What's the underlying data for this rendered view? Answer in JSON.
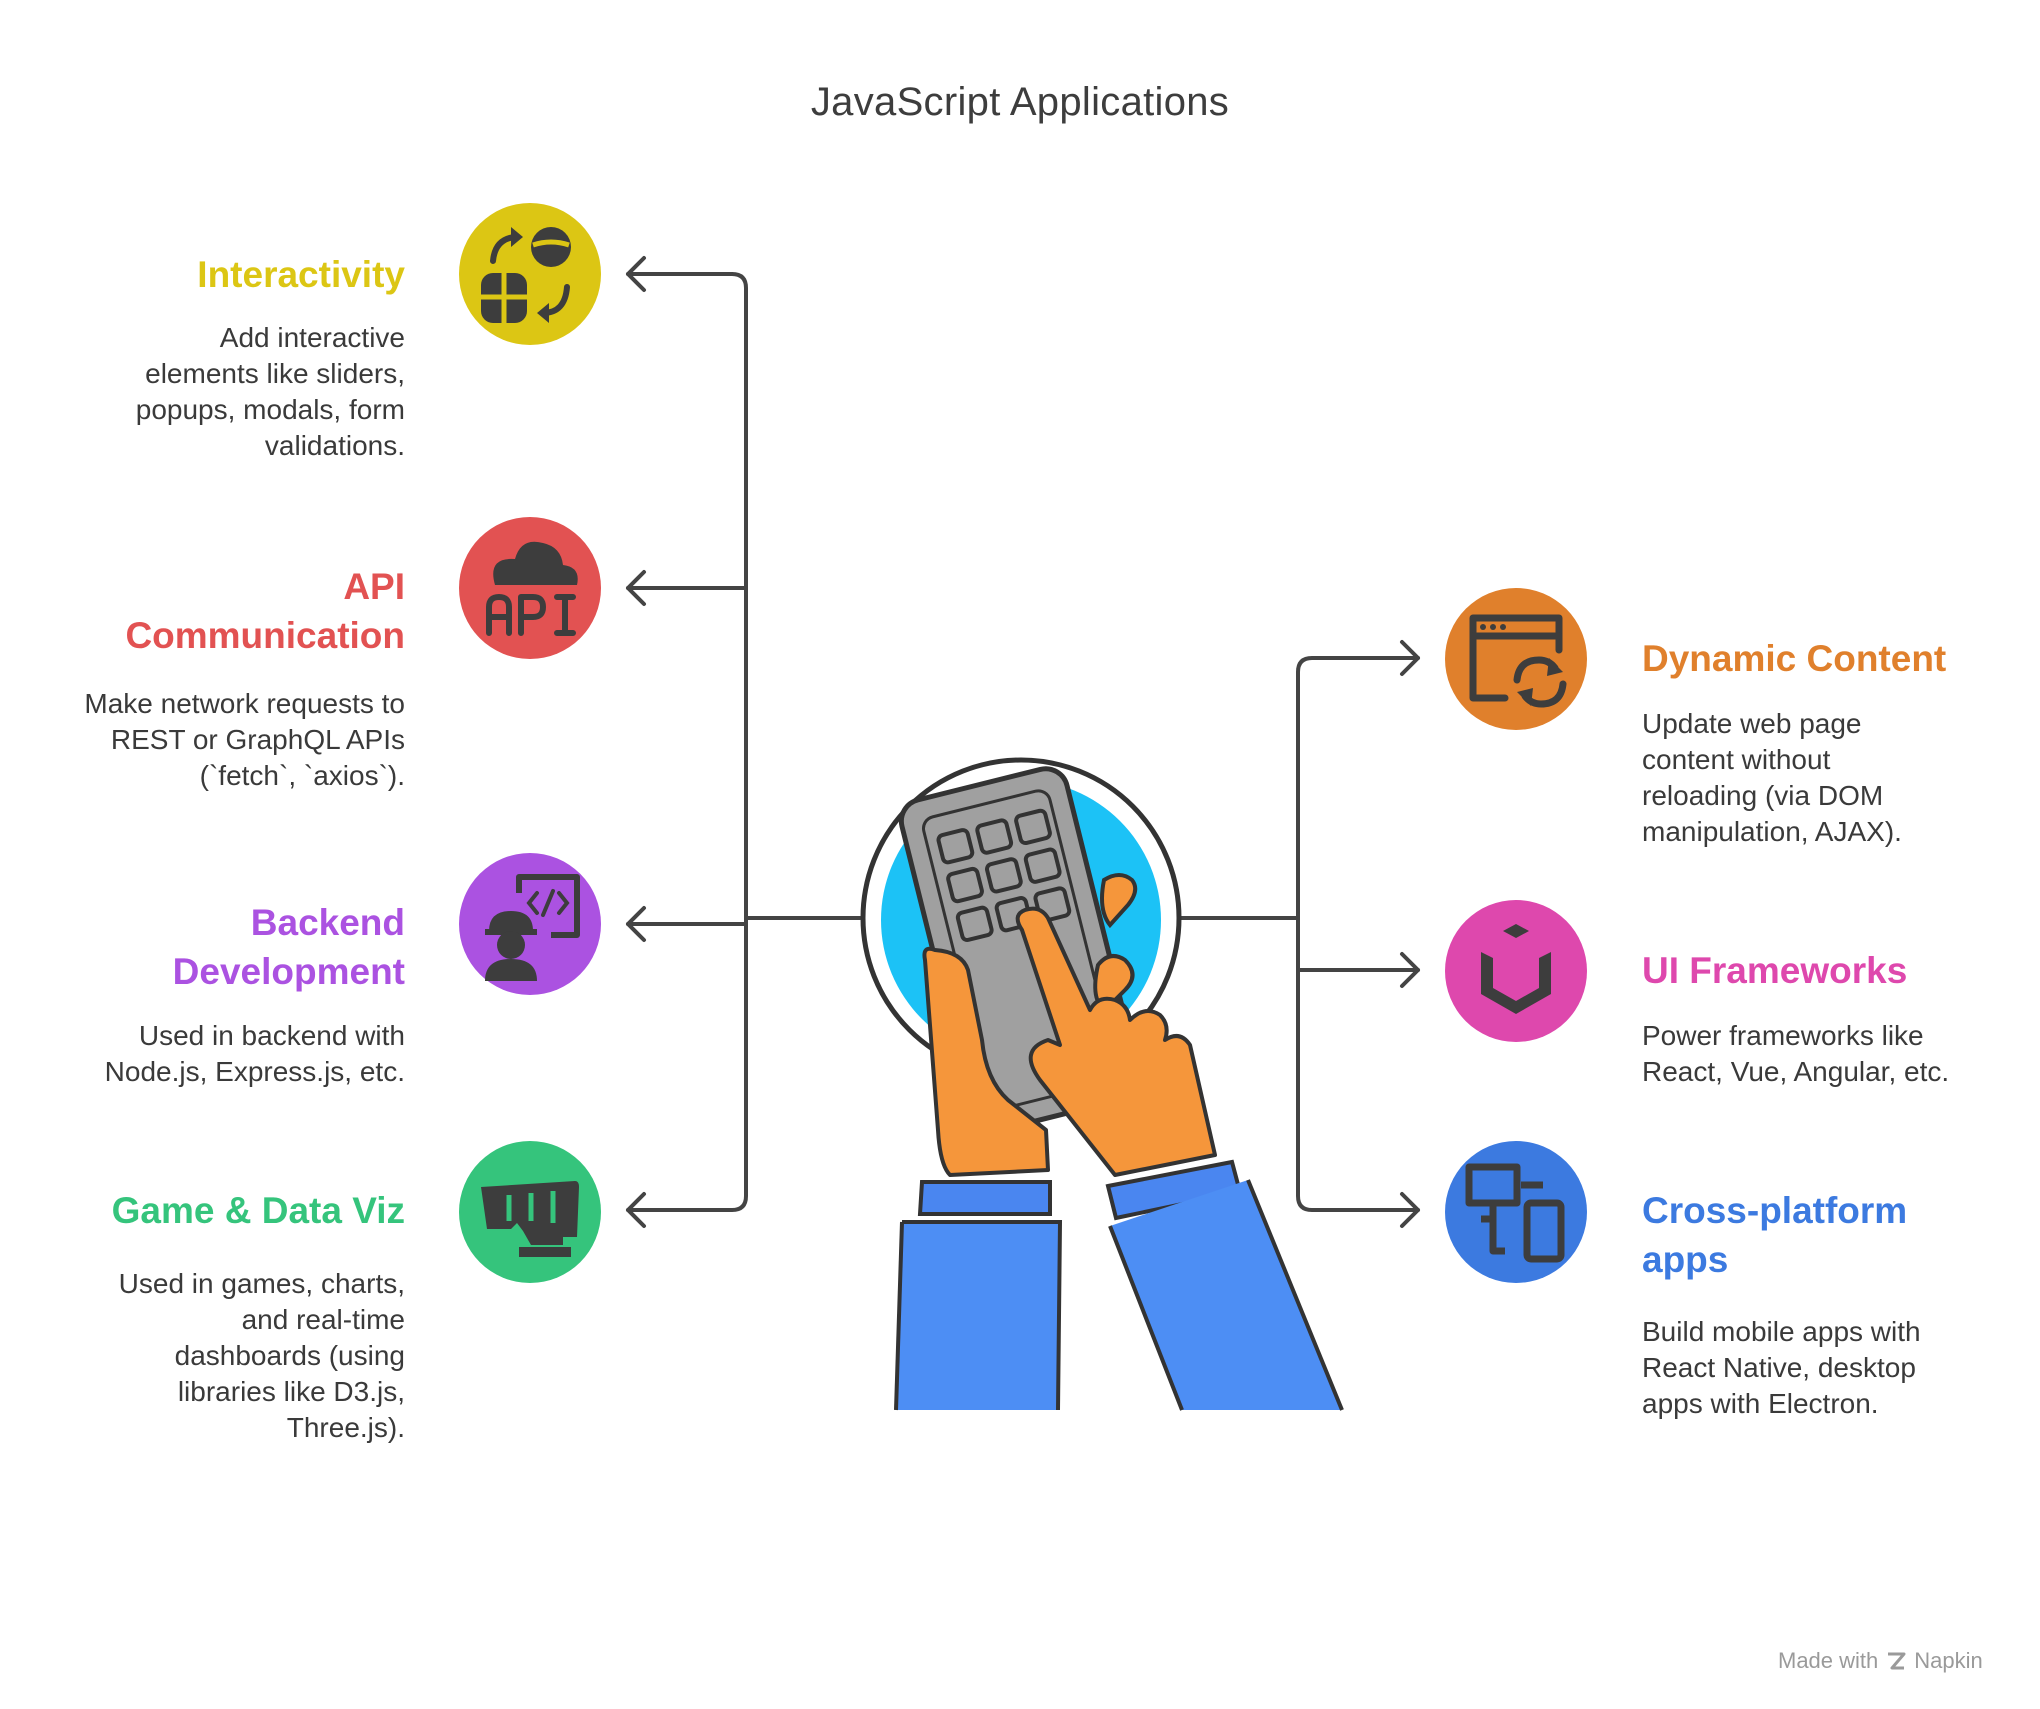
{
  "title": "JavaScript Applications",
  "items": [
    {
      "heading": "Interactivity",
      "description": "Add interactive elements like sliders, popups, modals, form validations.",
      "color": "#dcc614",
      "icon": "interaction-icon"
    },
    {
      "heading": "API Communication",
      "description": "Make network requests to REST or GraphQL APIs (`fetch`, `axios`).",
      "color": "#e25252",
      "icon": "cloud-api-icon"
    },
    {
      "heading": "Backend Development",
      "description": "Used in backend with Node.js, Express.js, etc.",
      "color": "#ab52e1",
      "icon": "developer-icon"
    },
    {
      "heading": "Game & Data Viz",
      "description": "Used in games, charts, and real-time dashboards (using libraries like D3.js, Three.js).",
      "color": "#35c47c",
      "icon": "game-icon"
    },
    {
      "heading": "Dynamic Content",
      "description": "Update web page content without reloading (via DOM manipulation, AJAX).",
      "color": "#e0802c",
      "icon": "browser-refresh-icon"
    },
    {
      "heading": "UI Frameworks",
      "description": "Power frameworks like React, Vue, Angular, etc.",
      "color": "#de48ad",
      "icon": "framework-cube-icon"
    },
    {
      "heading": "Cross-platform apps",
      "description": "Build mobile apps with React Native, desktop apps with Electron.",
      "color": "#3c7ae0",
      "icon": "devices-icon"
    }
  ],
  "center_icon": "hands-keypad-icon",
  "footer": {
    "made_with": "Made with",
    "brand": "Napkin"
  }
}
